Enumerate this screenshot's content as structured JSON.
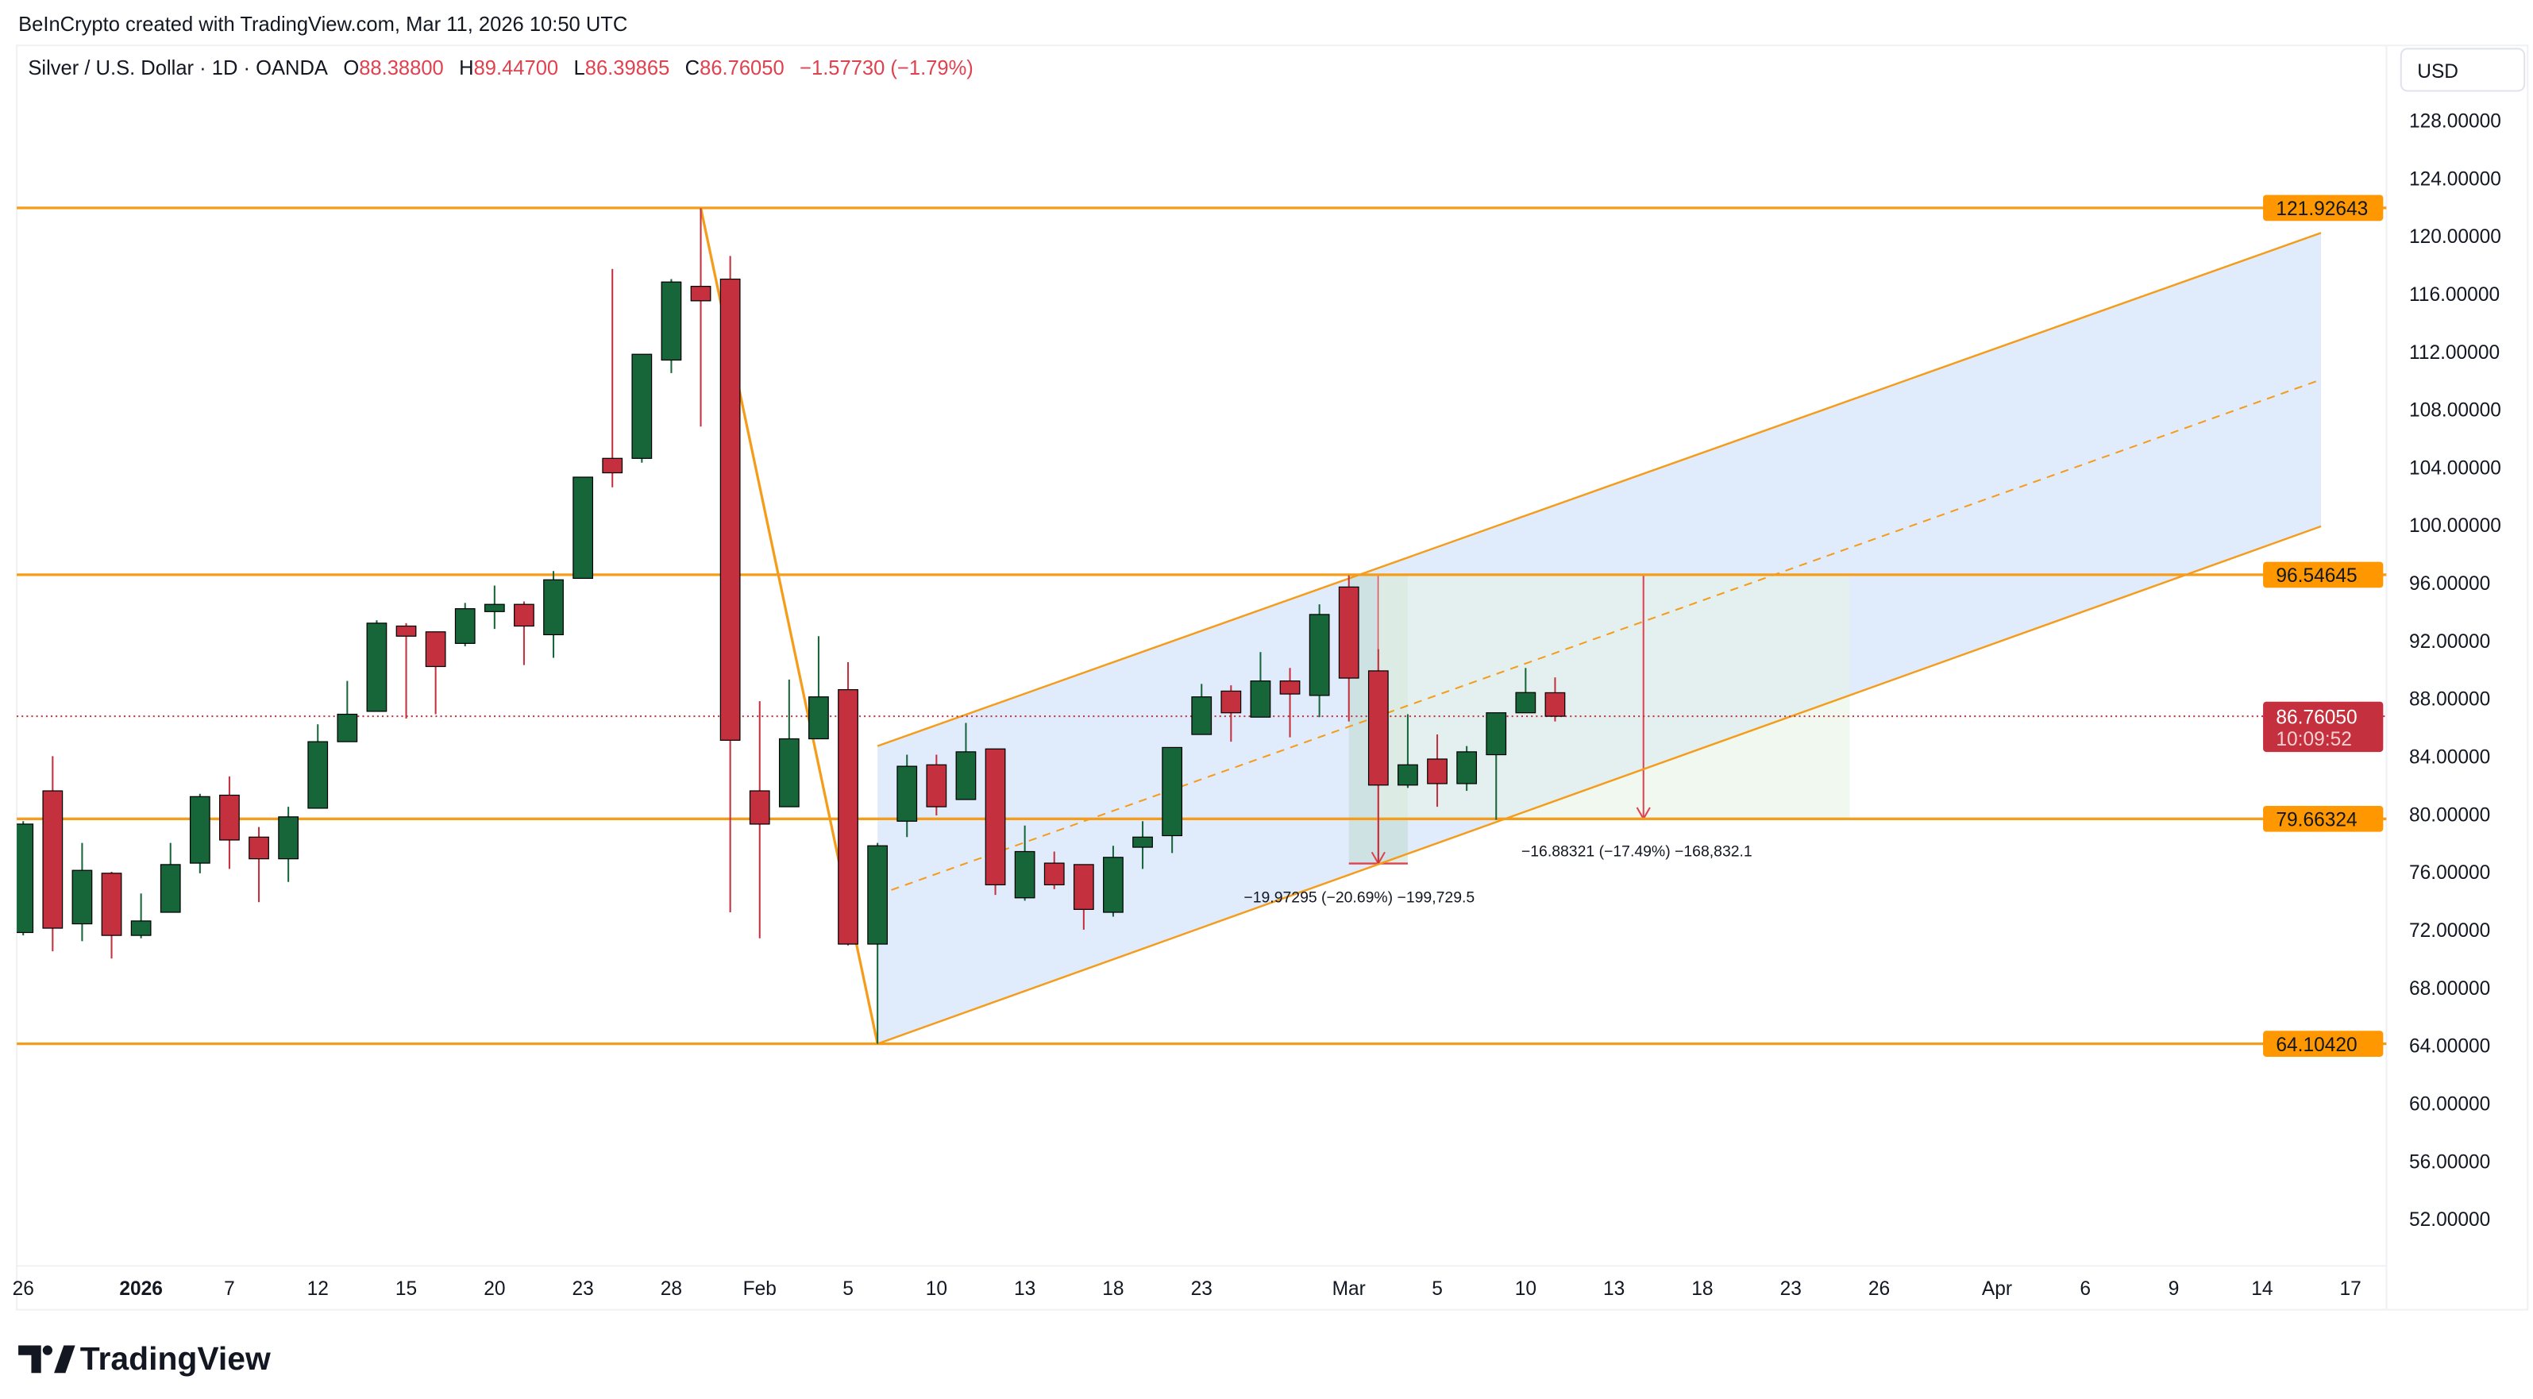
{
  "header": {
    "credit": "BeInCrypto created with TradingView.com, Mar 11, 2026 10:50 UTC",
    "symbol": "Silver / U.S. Dollar · 1D · OANDA",
    "o_label": "O",
    "o_value": "88.38800",
    "h_label": "H",
    "h_value": "89.44700",
    "l_label": "L",
    "l_value": "86.39865",
    "c_label": "C",
    "c_value": "86.76050",
    "change": "−1.57730 (−1.79%)"
  },
  "currency_button": "USD",
  "logo_text": "TradingView",
  "colors": {
    "up": "#17663a",
    "down": "#c4303d",
    "level": "#f59c1a",
    "channel_fill": "#dbe7fb",
    "measure_red": "#e0414f",
    "measure_fill": "#e6f3e6"
  },
  "chart_data": {
    "type": "candlestick",
    "symbol": "XAGUSD",
    "timeframe": "1D",
    "ylim": [
      50,
      130
    ],
    "y_ticks": [
      52,
      56,
      60,
      64,
      68,
      72,
      76,
      80,
      84,
      88,
      92,
      96,
      100,
      104,
      108,
      112,
      116,
      120,
      124,
      128
    ],
    "y_tick_labels": [
      "52.00000",
      "56.00000",
      "60.00000",
      "64.00000",
      "68.00000",
      "72.00000",
      "76.00000",
      "80.00000",
      "84.00000",
      "88.00000",
      "92.00000",
      "96.00000",
      "100.00000",
      "104.00000",
      "108.00000",
      "112.00000",
      "116.00000",
      "120.00000",
      "124.00000",
      "128.00000"
    ],
    "x_ticks": [
      {
        "date": "2025-12-26",
        "label": "26"
      },
      {
        "date": "2026-01-02",
        "label": "2026"
      },
      {
        "date": "2026-01-07",
        "label": "7"
      },
      {
        "date": "2026-01-12",
        "label": "12"
      },
      {
        "date": "2026-01-15",
        "label": "15"
      },
      {
        "date": "2026-01-20",
        "label": "20"
      },
      {
        "date": "2026-01-23",
        "label": "23"
      },
      {
        "date": "2026-01-28",
        "label": "28"
      },
      {
        "date": "2026-02-02",
        "label": "Feb"
      },
      {
        "date": "2026-02-05",
        "label": "5"
      },
      {
        "date": "2026-02-10",
        "label": "10"
      },
      {
        "date": "2026-02-13",
        "label": "13"
      },
      {
        "date": "2026-02-18",
        "label": "18"
      },
      {
        "date": "2026-02-23",
        "label": "23"
      },
      {
        "date": "2026-03-02",
        "label": "Mar"
      },
      {
        "date": "2026-03-05",
        "label": "5"
      },
      {
        "date": "2026-03-10",
        "label": "10"
      },
      {
        "date": "2026-03-13",
        "label": "13"
      },
      {
        "date": "2026-03-18",
        "label": "18"
      },
      {
        "date": "2026-03-23",
        "label": "23"
      },
      {
        "date": "2026-03-26",
        "label": "26"
      },
      {
        "date": "2026-04-01",
        "label": "Apr"
      },
      {
        "date": "2026-04-06",
        "label": "6"
      },
      {
        "date": "2026-04-09",
        "label": "9"
      },
      {
        "date": "2026-04-14",
        "label": "14"
      },
      {
        "date": "2026-04-17",
        "label": "17"
      }
    ],
    "candles": [
      {
        "d": "2025-12-26",
        "o": 71.8,
        "h": 79.5,
        "l": 71.6,
        "c": 79.3
      },
      {
        "d": "2025-12-29",
        "o": 81.6,
        "h": 84.0,
        "l": 70.5,
        "c": 72.1
      },
      {
        "d": "2025-12-30",
        "o": 72.4,
        "h": 78.0,
        "l": 71.2,
        "c": 76.1
      },
      {
        "d": "2025-12-31",
        "o": 75.9,
        "h": 76.0,
        "l": 70.0,
        "c": 71.6
      },
      {
        "d": "2026-01-02",
        "o": 71.6,
        "h": 74.5,
        "l": 71.4,
        "c": 72.6
      },
      {
        "d": "2026-01-05",
        "o": 73.2,
        "h": 78.0,
        "l": 73.2,
        "c": 76.5
      },
      {
        "d": "2026-01-06",
        "o": 76.6,
        "h": 81.4,
        "l": 75.9,
        "c": 81.2
      },
      {
        "d": "2026-01-07",
        "o": 81.3,
        "h": 82.6,
        "l": 76.2,
        "c": 78.2
      },
      {
        "d": "2026-01-08",
        "o": 78.4,
        "h": 79.1,
        "l": 73.9,
        "c": 76.9
      },
      {
        "d": "2026-01-09",
        "o": 76.9,
        "h": 80.5,
        "l": 75.3,
        "c": 79.8
      },
      {
        "d": "2026-01-12",
        "o": 80.4,
        "h": 86.2,
        "l": 80.4,
        "c": 85.0
      },
      {
        "d": "2026-01-13",
        "o": 85.0,
        "h": 89.2,
        "l": 85.0,
        "c": 86.9
      },
      {
        "d": "2026-01-14",
        "o": 87.1,
        "h": 93.4,
        "l": 87.1,
        "c": 93.2
      },
      {
        "d": "2026-01-15",
        "o": 93.0,
        "h": 93.2,
        "l": 86.6,
        "c": 92.3
      },
      {
        "d": "2026-01-16",
        "o": 92.6,
        "h": 92.6,
        "l": 86.9,
        "c": 90.2
      },
      {
        "d": "2026-01-19",
        "o": 91.8,
        "h": 94.6,
        "l": 91.6,
        "c": 94.2
      },
      {
        "d": "2026-01-20",
        "o": 94.0,
        "h": 95.8,
        "l": 92.8,
        "c": 94.5
      },
      {
        "d": "2026-01-21",
        "o": 94.5,
        "h": 94.7,
        "l": 90.3,
        "c": 93.0
      },
      {
        "d": "2026-01-22",
        "o": 92.4,
        "h": 96.8,
        "l": 90.8,
        "c": 96.2
      },
      {
        "d": "2026-01-23",
        "o": 96.3,
        "h": 103.3,
        "l": 96.3,
        "c": 103.3
      },
      {
        "d": "2026-01-26",
        "o": 104.6,
        "h": 117.7,
        "l": 102.6,
        "c": 103.6
      },
      {
        "d": "2026-01-27",
        "o": 104.6,
        "h": 111.8,
        "l": 104.3,
        "c": 111.8
      },
      {
        "d": "2026-01-28",
        "o": 111.4,
        "h": 117.0,
        "l": 110.5,
        "c": 116.8
      },
      {
        "d": "2026-01-29",
        "o": 116.5,
        "h": 121.9,
        "l": 106.8,
        "c": 115.5
      },
      {
        "d": "2026-01-30",
        "o": 117.0,
        "h": 118.6,
        "l": 73.2,
        "c": 85.1
      },
      {
        "d": "2026-02-02",
        "o": 81.6,
        "h": 87.8,
        "l": 71.4,
        "c": 79.3
      },
      {
        "d": "2026-02-03",
        "o": 80.5,
        "h": 89.3,
        "l": 80.5,
        "c": 85.2
      },
      {
        "d": "2026-02-04",
        "o": 85.2,
        "h": 92.3,
        "l": 85.2,
        "c": 88.1
      },
      {
        "d": "2026-02-05",
        "o": 88.6,
        "h": 90.5,
        "l": 70.9,
        "c": 71.0
      },
      {
        "d": "2026-02-06",
        "o": 71.0,
        "h": 78.0,
        "l": 64.1,
        "c": 77.8
      },
      {
        "d": "2026-02-09",
        "o": 79.5,
        "h": 84.1,
        "l": 78.4,
        "c": 83.3
      },
      {
        "d": "2026-02-10",
        "o": 83.4,
        "h": 84.1,
        "l": 79.9,
        "c": 80.5
      },
      {
        "d": "2026-02-11",
        "o": 81.0,
        "h": 86.3,
        "l": 81.0,
        "c": 84.3
      },
      {
        "d": "2026-02-12",
        "o": 84.5,
        "h": 84.5,
        "l": 74.4,
        "c": 75.1
      },
      {
        "d": "2026-02-13",
        "o": 74.2,
        "h": 79.2,
        "l": 74.0,
        "c": 77.4
      },
      {
        "d": "2026-02-16",
        "o": 76.6,
        "h": 77.4,
        "l": 74.8,
        "c": 75.1
      },
      {
        "d": "2026-02-17",
        "o": 76.5,
        "h": 76.5,
        "l": 72.0,
        "c": 73.4
      },
      {
        "d": "2026-02-18",
        "o": 73.2,
        "h": 77.8,
        "l": 72.9,
        "c": 77.0
      },
      {
        "d": "2026-02-19",
        "o": 77.7,
        "h": 79.5,
        "l": 76.2,
        "c": 78.4
      },
      {
        "d": "2026-02-20",
        "o": 78.5,
        "h": 84.6,
        "l": 77.3,
        "c": 84.6
      },
      {
        "d": "2026-02-23",
        "o": 85.5,
        "h": 89.0,
        "l": 85.5,
        "c": 88.1
      },
      {
        "d": "2026-02-24",
        "o": 88.5,
        "h": 88.9,
        "l": 85.0,
        "c": 87.0
      },
      {
        "d": "2026-02-25",
        "o": 86.7,
        "h": 91.2,
        "l": 86.7,
        "c": 89.2
      },
      {
        "d": "2026-02-26",
        "o": 89.2,
        "h": 90.1,
        "l": 85.3,
        "c": 88.3
      },
      {
        "d": "2026-02-27",
        "o": 88.2,
        "h": 94.5,
        "l": 86.7,
        "c": 93.8
      },
      {
        "d": "2026-03-02",
        "o": 95.7,
        "h": 96.5,
        "l": 86.4,
        "c": 89.4
      },
      {
        "d": "2026-03-03",
        "o": 89.9,
        "h": 91.4,
        "l": 76.6,
        "c": 82.0
      },
      {
        "d": "2026-03-04",
        "o": 82.0,
        "h": 86.9,
        "l": 81.8,
        "c": 83.4
      },
      {
        "d": "2026-03-05",
        "o": 83.8,
        "h": 85.5,
        "l": 80.5,
        "c": 82.1
      },
      {
        "d": "2026-03-06",
        "o": 82.1,
        "h": 84.7,
        "l": 81.6,
        "c": 84.3
      },
      {
        "d": "2026-03-09",
        "o": 84.1,
        "h": 87.0,
        "l": 79.6,
        "c": 87.0
      },
      {
        "d": "2026-03-10",
        "o": 87.0,
        "h": 90.1,
        "l": 87.0,
        "c": 88.4
      },
      {
        "d": "2026-03-11",
        "o": 88.388,
        "h": 89.447,
        "l": 86.39865,
        "c": 86.7605
      }
    ],
    "horizontal_levels": [
      {
        "price": 121.92643,
        "label": "121.92643"
      },
      {
        "price": 96.54645,
        "label": "96.54645"
      },
      {
        "price": 79.66324,
        "label": "79.66324"
      },
      {
        "price": 64.1042,
        "label": "64.10420"
      }
    ],
    "current_price": {
      "price": 86.7605,
      "label": "86.76050",
      "countdown": "10:09:52"
    },
    "trend_line": [
      {
        "d": "2026-01-29",
        "p": 121.92643
      },
      {
        "d": "2026-02-06",
        "p": 64.1042
      }
    ],
    "parallel_channel": {
      "lower": [
        {
          "d": "2026-02-06",
          "p": 64.1
        },
        {
          "d": "2026-04-16",
          "p": 99.9
        }
      ],
      "upper": [
        {
          "d": "2026-02-06",
          "p": 84.7
        },
        {
          "d": "2026-04-16",
          "p": 120.2
        }
      ]
    },
    "measures": [
      {
        "from_date": "2026-03-02",
        "to_date": "2026-03-04",
        "arrow_date": "2026-03-03",
        "from_price": 96.54645,
        "to_price": 76.5735,
        "label": "−19.97295 (−20.69%) −199,729.5"
      },
      {
        "from_date": "2026-03-03",
        "to_date": "2026-03-25",
        "arrow_date": "2026-03-16",
        "from_price": 96.54645,
        "to_price": 79.66324,
        "label": "−16.88321 (−17.49%) −168,832.1"
      }
    ]
  }
}
